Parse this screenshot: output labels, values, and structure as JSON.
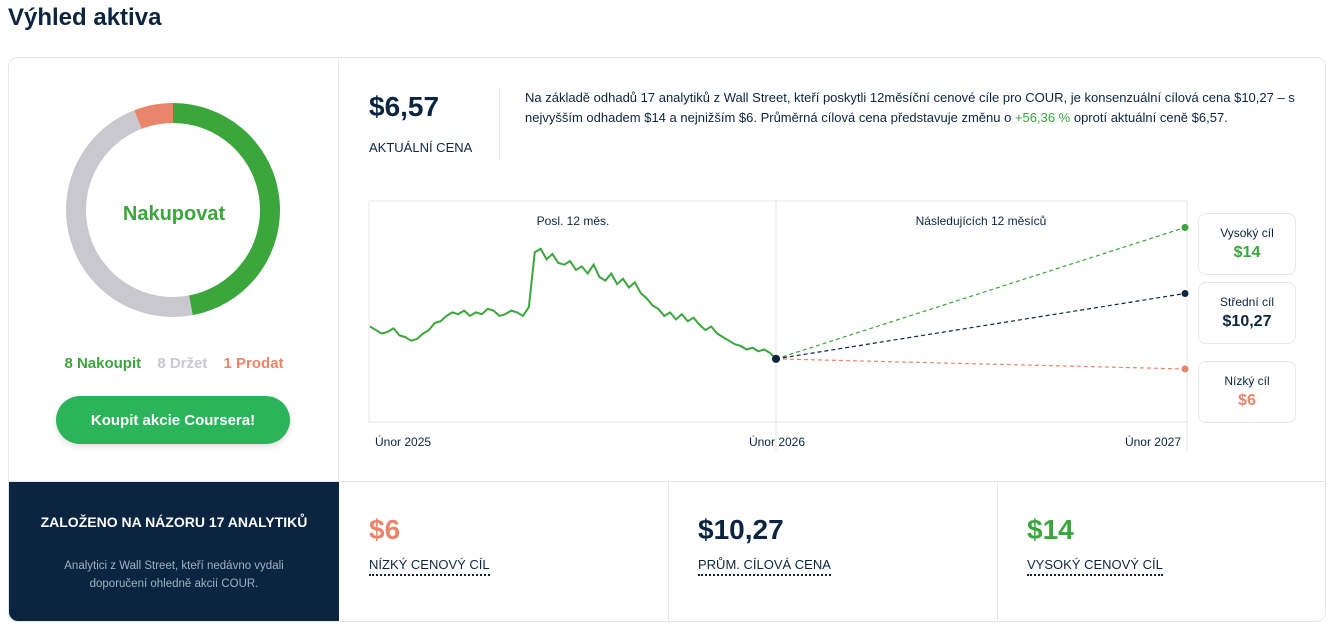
{
  "page_title": "Výhled aktiva",
  "rating": {
    "label": "Nakupovat",
    "buy_count_label": "8 Nakoupit",
    "hold_count_label": "8 Držet",
    "sell_count_label": "1 Prodat",
    "buy": 8,
    "hold": 8,
    "sell": 1,
    "colors": {
      "buy": "#3aa63c",
      "hold": "#c9c8cf",
      "sell": "#e9856b"
    }
  },
  "cta_button": "Koupit akcie Coursera!",
  "price": {
    "value": "$6,57",
    "label": "AKTUÁLNÍ CENA"
  },
  "summary": {
    "text_before": "Na základě odhadů 17 analytiků z Wall Street, kteří poskytli 12měsíční cenové cíle pro COUR, je konsenzuální cílová cena $10,27 – s nejvyšším odhadem $14 a nejnižším $6. Průměrná cílová cena představuje změnu o ",
    "change": "+56,36 %",
    "text_after": " oprotí aktuální ceně $6,57."
  },
  "chart_data": {
    "type": "line",
    "panels": [
      "Posl. 12 měs.",
      "Následujících 12 měsíců"
    ],
    "x_labels": [
      "Únor 2025",
      "Únor 2026",
      "Únor 2027"
    ],
    "history": [
      8.4,
      8.2,
      8.0,
      8.1,
      8.3,
      7.9,
      7.8,
      7.6,
      7.7,
      8.0,
      8.2,
      8.6,
      8.7,
      9.0,
      9.2,
      9.1,
      9.3,
      9.0,
      9.2,
      9.1,
      9.4,
      9.3,
      9.0,
      9.1,
      9.3,
      9.2,
      9.0,
      9.5,
      12.6,
      12.8,
      12.2,
      12.5,
      12.0,
      11.9,
      12.1,
      11.6,
      11.8,
      11.4,
      11.9,
      11.2,
      11.0,
      11.4,
      10.8,
      11.1,
      10.6,
      10.9,
      10.3,
      10.0,
      9.6,
      9.4,
      9.0,
      9.2,
      8.8,
      9.1,
      8.7,
      8.9,
      8.5,
      8.2,
      8.4,
      8.0,
      7.8,
      7.6,
      7.4,
      7.3,
      7.1,
      7.2,
      7.0,
      7.1,
      6.9,
      6.57
    ],
    "current": 6.57,
    "targets": {
      "high": 14,
      "mean": 10.27,
      "low": 6
    },
    "ylim": [
      3,
      15.5
    ]
  },
  "targets": {
    "high": {
      "label": "Vysoký cíl",
      "value": "$14"
    },
    "mean": {
      "label": "Střední cíl",
      "value": "$10,27"
    },
    "low": {
      "label": "Nízký cíl",
      "value": "$6"
    }
  },
  "based_on": {
    "title": "ZALOŽENO NA NÁZORU 17 ANALYTIKŮ",
    "subtitle": "Analytici z Wall Street, kteří nedávno vydali doporučení ohledně akcií COUR."
  },
  "stats": [
    {
      "value": "$6",
      "label": "NÍZKÝ CENOVÝ CÍL",
      "color": "#e9856b"
    },
    {
      "value": "$10,27",
      "label": "PRŮM. CÍLOVÁ CENA",
      "color": "#0b2540"
    },
    {
      "value": "$14",
      "label": "VYSOKÝ CENOVÝ CÍL",
      "color": "#3aa63c"
    }
  ]
}
